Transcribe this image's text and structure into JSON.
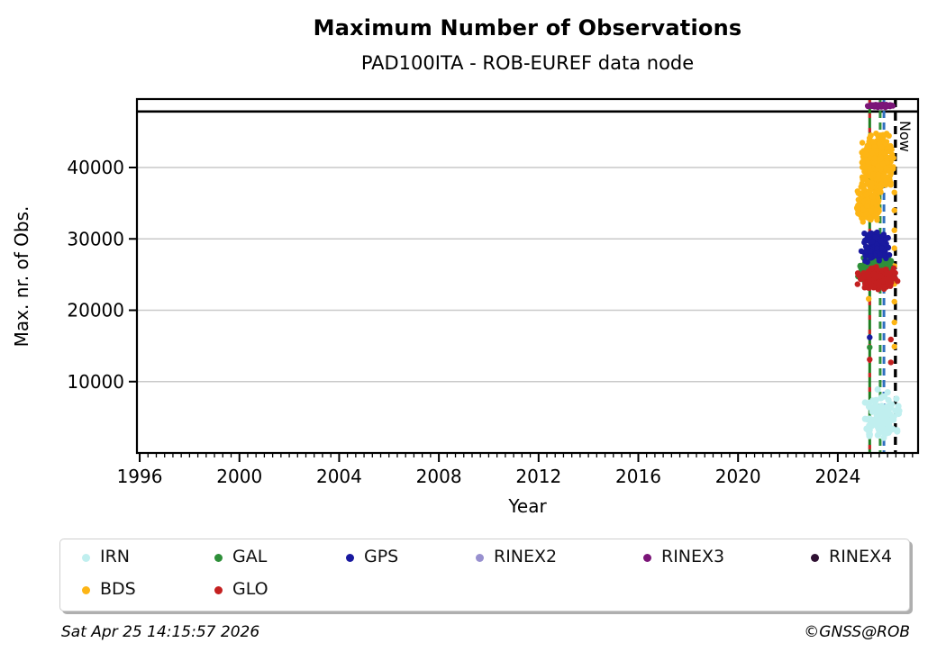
{
  "title": "Maximum Number of Observations",
  "subtitle": "PAD100ITA - ROB-EUREF data node",
  "footer": {
    "timestamp": "Sat Apr 25 14:15:57 2026",
    "credit": "©GNSS@ROB"
  },
  "legend": {
    "position": "bottom",
    "items": [
      {
        "label": "IRN",
        "color": "#c0efef",
        "row": 0,
        "col": 0
      },
      {
        "label": "GAL",
        "color": "#2e8f39",
        "row": 0,
        "col": 1
      },
      {
        "label": "GPS",
        "color": "#19199f",
        "row": 0,
        "col": 2
      },
      {
        "label": "RINEX2",
        "color": "#9890cf",
        "row": 0,
        "col": 3
      },
      {
        "label": "RINEX3",
        "color": "#7b1578",
        "row": 0,
        "col": 4
      },
      {
        "label": "RINEX4",
        "color": "#2f1133",
        "row": 0,
        "col": 5
      },
      {
        "label": "BDS",
        "color": "#fdb515",
        "row": 1,
        "col": 0
      },
      {
        "label": "GLO",
        "color": "#c42020",
        "row": 1,
        "col": 1
      }
    ]
  },
  "chart_data": {
    "type": "scatter",
    "title": "Maximum Number of Observations",
    "subtitle": "PAD100ITA - ROB-EUREF data node",
    "xlabel": "Year",
    "ylabel": "Max. nr. of Obs.",
    "xlim": [
      1995.89,
      2027.22
    ],
    "ylim": [
      0,
      49590
    ],
    "xticks": [
      1996,
      2000,
      2004,
      2008,
      2012,
      2016,
      2020,
      2024
    ],
    "yticks": [
      10000,
      20000,
      30000,
      40000
    ],
    "minor_xtick_step": 0.3333,
    "grid": "horizontal",
    "grid_color": "#c9c9c9",
    "now_label": "Now",
    "hline": {
      "value": 47850,
      "color": "#000000",
      "width": 2.6
    },
    "vlines": [
      {
        "name": "start-line-green",
        "year": 2025.28,
        "color": "#1e7d1e",
        "style": "solid",
        "width": 3,
        "dash": null
      },
      {
        "name": "start-line-red",
        "year": 2025.28,
        "color": "#cc2222",
        "style": "dashed",
        "width": 3,
        "dash": [
          5,
          11
        ]
      },
      {
        "name": "event-line-green",
        "year": 2025.7,
        "color": "#2e8f39",
        "style": "dashed",
        "width": 3,
        "dash": [
          8,
          5
        ]
      },
      {
        "name": "event-line-blue",
        "year": 2025.85,
        "color": "#2e6fbe",
        "style": "dashed",
        "width": 3,
        "dash": [
          8,
          5
        ]
      },
      {
        "name": "now-line",
        "year": 2026.31,
        "color": "#000000",
        "style": "dashed",
        "width": 3.4,
        "dash": [
          9,
          6
        ],
        "label": "Now"
      }
    ],
    "series": [
      {
        "name": "BDS",
        "color": "#fdb515",
        "dot_r": 3.2,
        "seed": 11,
        "clusters": [
          {
            "x": [
              2024.88,
              2026.28
            ],
            "y": [
              36300,
              45200
            ],
            "n": 430
          },
          {
            "x": [
              2024.65,
              2025.7
            ],
            "y": [
              32300,
              36800
            ],
            "n": 200
          }
        ],
        "points": [
          [
            2025.24,
            21600
          ],
          [
            2026.27,
            36500
          ],
          [
            2026.27,
            34000
          ],
          [
            2026.27,
            31200
          ],
          [
            2026.27,
            28700
          ],
          [
            2026.27,
            26200
          ],
          [
            2026.27,
            23700
          ],
          [
            2026.27,
            21200
          ],
          [
            2026.27,
            18300
          ],
          [
            2026.27,
            14900
          ]
        ]
      },
      {
        "name": "GAL",
        "color": "#2e8f39",
        "dot_r": 3.2,
        "seed": 21,
        "clusters": [
          {
            "x": [
              2024.76,
              2026.38
            ],
            "y": [
              24100,
              27900
            ],
            "n": 200
          }
        ],
        "points": [
          [
            2025.28,
            14800
          ]
        ]
      },
      {
        "name": "GLO",
        "color": "#c42020",
        "dot_r": 3.2,
        "seed": 31,
        "clusters": [
          {
            "x": [
              2024.76,
              2026.42
            ],
            "y": [
              22800,
              26100
            ],
            "n": 200
          }
        ],
        "points": [
          [
            2026.13,
            15900
          ],
          [
            2026.13,
            12700
          ],
          [
            2025.28,
            13100
          ]
        ]
      },
      {
        "name": "GPS",
        "color": "#19199f",
        "dot_r": 3.2,
        "seed": 41,
        "clusters": [
          {
            "x": [
              2024.9,
              2026.2
            ],
            "y": [
              26700,
              31000
            ],
            "n": 180
          }
        ],
        "points": [
          [
            2025.28,
            16200
          ]
        ]
      },
      {
        "name": "IRN",
        "color": "#c0efef",
        "dot_r": 3.6,
        "seed": 51,
        "clusters": [
          {
            "x": [
              2025.05,
              2026.55
            ],
            "y": [
              1500,
              8300
            ],
            "n": 120
          }
        ],
        "points": [
          [
            2025.6,
            8900
          ],
          [
            2026.0,
            8500
          ],
          [
            2026.35,
            7600
          ]
        ]
      },
      {
        "name": "RINEX2",
        "color": "#9890cf",
        "dot_r": 3.2,
        "seed": 61,
        "clusters": [],
        "points": []
      },
      {
        "name": "RINEX3",
        "color": "#7b1578",
        "dot_r": 3.0,
        "seed": 71,
        "clusters": [
          {
            "x": [
              2025.15,
              2026.25
            ],
            "y": [
              48400,
              48900
            ],
            "n": 95
          }
        ],
        "points": []
      },
      {
        "name": "RINEX4",
        "color": "#2f1133",
        "dot_r": 3.2,
        "seed": 81,
        "clusters": [],
        "points": []
      }
    ]
  }
}
